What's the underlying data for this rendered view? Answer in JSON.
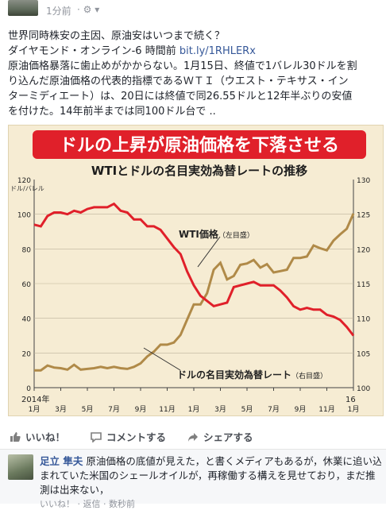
{
  "post": {
    "timestamp": "1分前",
    "privacy": "· ⚙ ▾",
    "title_line": "世界同時株安の主因、原油安はいつまで続く？",
    "source_prefix": "ダイヤモンド・オンライン-6 時間前",
    "link": "bit.ly/1RHLERx",
    "body_lines": [
      "原油価格暴落に歯止めがかからない。1月15日、終値で1バレル30ドルを割",
      "り込んだ原油価格の代表的指標であるＷＴＩ（ウエスト・テキサス・イン",
      "ターミディエート）は、20日には終値で同26.55ドルと12年半ぶりの安値",
      "を付けた。14年前半までは同100ドル台で .."
    ]
  },
  "chart_data": {
    "type": "line",
    "banner": "ドルの上昇が原油価格を下落させる",
    "title": "WTIとドルの名目実効為替レートの推移",
    "left_unit": "ドル/バレル",
    "left_ticks": [
      "120",
      "100",
      "80",
      "60",
      "40",
      "20",
      "0"
    ],
    "right_ticks": [
      "130",
      "125",
      "120",
      "115",
      "110",
      "105",
      "100"
    ],
    "year_start": "2014年",
    "year_end": "16",
    "x_ticks": [
      "1月",
      "3月",
      "5月",
      "7月",
      "9月",
      "11月",
      "1月",
      "3月",
      "5月",
      "7月",
      "9月",
      "11月",
      "1月"
    ],
    "ylim_left": [
      0,
      120
    ],
    "ylim_right": [
      100,
      130
    ],
    "colors": {
      "wti": "#e0202a",
      "fx": "#b08a48",
      "banner": "#e0202a"
    },
    "series": [
      {
        "name": "WTI価格",
        "axis_note": "（左目盛）",
        "axis": "left",
        "x": [
          0,
          0.5,
          1,
          1.5,
          2,
          2.5,
          3,
          3.5,
          4,
          4.5,
          5,
          5.5,
          6,
          6.5,
          7,
          7.5,
          8,
          8.5,
          9,
          9.5,
          10,
          10.5,
          11,
          11.5,
          12,
          12.5,
          13,
          13.5,
          14,
          14.5,
          15,
          15.5,
          16,
          16.5,
          17,
          17.5,
          18,
          18.5,
          19,
          19.5,
          20,
          20.5,
          21,
          21.5,
          22,
          22.5,
          23,
          23.5,
          24
        ],
        "values": [
          94,
          93,
          99,
          101,
          101,
          100,
          102,
          101,
          103,
          104,
          104,
          104,
          106,
          102,
          101,
          97,
          97,
          93,
          93,
          91,
          86,
          81,
          77,
          67,
          59,
          53,
          50,
          47,
          48,
          49,
          58,
          59,
          60,
          61,
          59,
          59,
          59,
          56,
          52,
          47,
          45,
          46,
          45,
          45,
          42,
          41,
          39,
          35,
          30
        ]
      },
      {
        "name": "ドルの名目実効為替レート",
        "axis_note": "（右目盛）",
        "axis": "right",
        "x": [
          0,
          0.5,
          1,
          1.5,
          2,
          2.5,
          3,
          3.5,
          4,
          4.5,
          5,
          5.5,
          6,
          6.5,
          7,
          7.5,
          8,
          8.5,
          9,
          9.5,
          10,
          10.5,
          11,
          11.5,
          12,
          12.5,
          13,
          13.5,
          14,
          14.5,
          15,
          15.5,
          16,
          16.5,
          17,
          17.5,
          18,
          18.5,
          19,
          19.5,
          20,
          20.5,
          21,
          21.5,
          22,
          22.5,
          23,
          23.5,
          24
        ],
        "values": [
          102.5,
          102.5,
          103.2,
          102.9,
          102.8,
          102.6,
          103.3,
          102.6,
          102.7,
          102.8,
          103.0,
          102.8,
          103.0,
          102.8,
          102.7,
          103.0,
          103.5,
          104.5,
          105.2,
          106.2,
          106.2,
          106.5,
          107.6,
          109.8,
          112,
          112,
          113.6,
          117,
          118,
          115.6,
          116.1,
          117.7,
          117.9,
          118.4,
          117.3,
          117.8,
          116.6,
          116.8,
          117,
          118.7,
          118.7,
          118.9,
          120.5,
          120.1,
          119.8,
          121.2,
          122.1,
          122.9,
          125.1
        ]
      }
    ]
  },
  "actions": {
    "like": "いいね！",
    "comment": "コメントする",
    "share": "シェアする"
  },
  "comment": {
    "name": "足立 隼夫",
    "lines": [
      "原油価格の底値が見えた，と書くメディアもあるが，休業に追い込",
      "まれていた米国のシェールオイルが，再稼働する構えを見せており，まだ推",
      "測は出来ない，"
    ],
    "meta": "いいね！ · 返信 · 数秒前"
  }
}
